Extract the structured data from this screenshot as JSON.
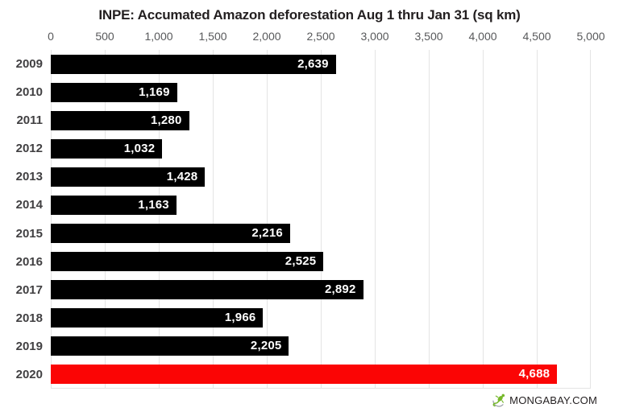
{
  "title": "INPE: Accumated Amazon deforestation Aug 1 thru Jan 31 (sq km)",
  "chart_data": {
    "type": "bar",
    "orientation": "horizontal",
    "title": "INPE: Accumated Amazon deforestation Aug 1 thru Jan 31 (sq km)",
    "categories": [
      "2009",
      "2010",
      "2011",
      "2012",
      "2013",
      "2014",
      "2015",
      "2016",
      "2017",
      "2018",
      "2019",
      "2020"
    ],
    "values": [
      2639,
      1169,
      1280,
      1032,
      1428,
      1163,
      2216,
      2525,
      2892,
      1966,
      2205,
      4688
    ],
    "value_labels": [
      "2,639",
      "1,169",
      "1,280",
      "1,032",
      "1,428",
      "1,163",
      "2,216",
      "2,525",
      "2,892",
      "1,966",
      "2,205",
      "4,688"
    ],
    "xlim": [
      0,
      5000
    ],
    "x_ticks": [
      "0",
      "500",
      "1,000",
      "1,500",
      "2,000",
      "2,500",
      "3,000",
      "3,500",
      "4,000",
      "4,500",
      "5,000"
    ],
    "x_tick_values": [
      0,
      500,
      1000,
      1500,
      2000,
      2500,
      3000,
      3500,
      4000,
      4500,
      5000
    ],
    "grid": true,
    "legend": "none",
    "bar_color": "#000000",
    "value_label_color": "#ffffff",
    "highlight": {
      "index": 11,
      "category": "2020",
      "color": "#fb0505"
    }
  },
  "footer": {
    "brand": "MONGABAY.COM",
    "logo": "mongabay-gecko-icon",
    "logo_green": "#76b82a",
    "logo_gray": "#9aa0a6"
  }
}
